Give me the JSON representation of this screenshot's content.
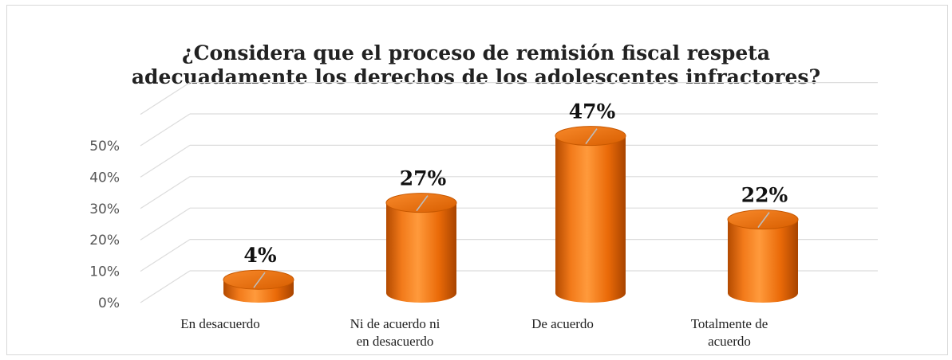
{
  "chart_data": {
    "type": "bar",
    "title_lines": [
      "¿Considera que el proceso de remisión fiscal respeta",
      "adecuadamente los derechos de los adolescentes infractores?"
    ],
    "categories": [
      [
        "En desacuerdo"
      ],
      [
        "Ni de acuerdo ni",
        "en desacuerdo"
      ],
      [
        "De acuerdo"
      ],
      [
        "Totalmente de",
        "acuerdo"
      ]
    ],
    "values": [
      4,
      27,
      47,
      22
    ],
    "data_labels": [
      "4%",
      "27%",
      "47%",
      "22%"
    ],
    "y_ticks": [
      "0%",
      "10%",
      "20%",
      "30%",
      "40%",
      "50%"
    ],
    "ylim": [
      0,
      50
    ],
    "xlabel": "",
    "ylabel": "",
    "grid": true,
    "legend": "none",
    "style": "3d-cylinder",
    "bar_color": "#f07010"
  }
}
